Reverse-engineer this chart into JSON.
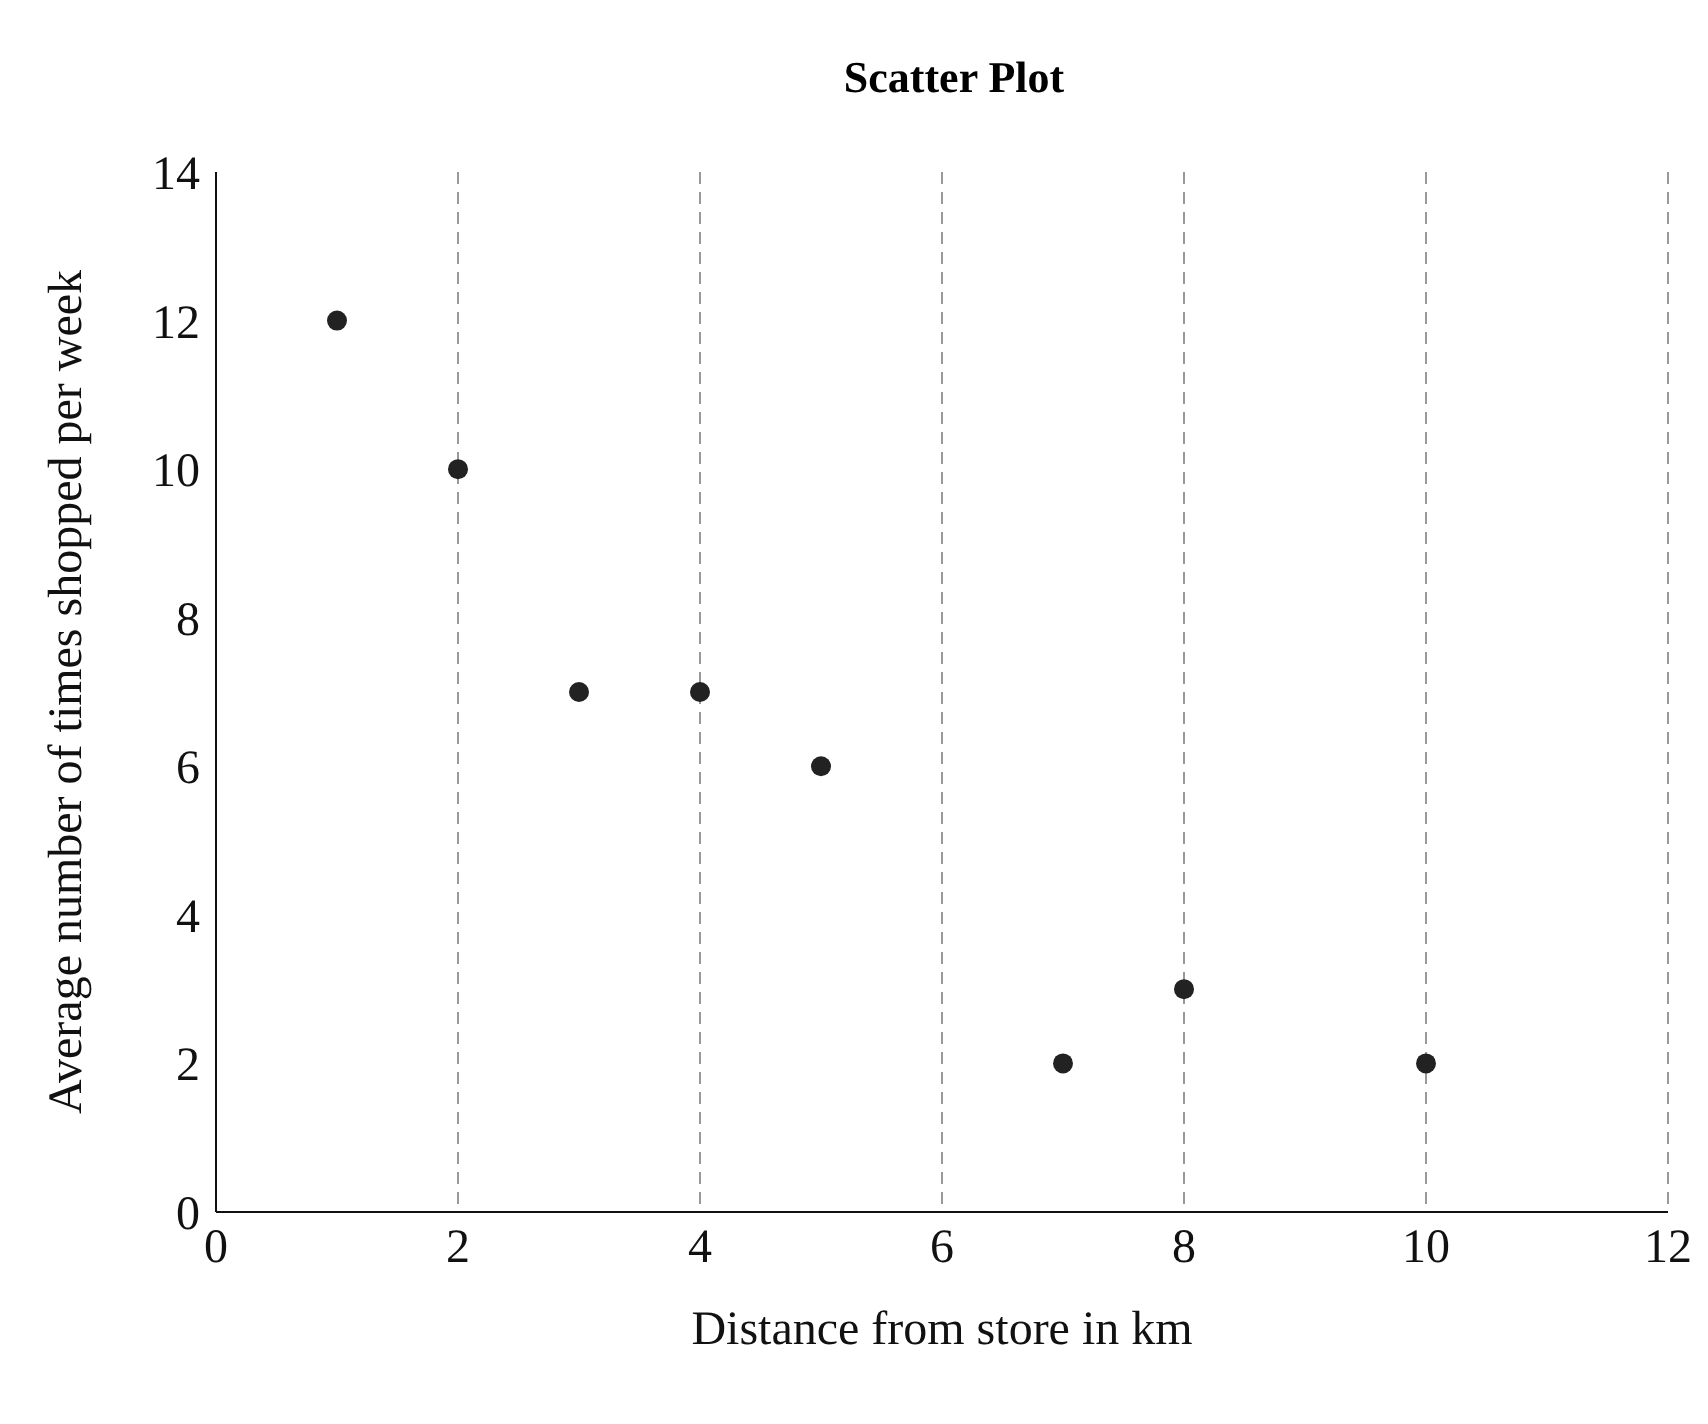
{
  "chart_data": {
    "type": "scatter",
    "title": "Scatter Plot",
    "xlabel": "Distance from store in km",
    "ylabel": "Average number of times shopped per week",
    "x": [
      1,
      2,
      3,
      4,
      5,
      7,
      8,
      10
    ],
    "series": [
      {
        "color": "#222222",
        "values": [
          12,
          10,
          7,
          7,
          6,
          2,
          3,
          2
        ]
      }
    ],
    "xlim": [
      0,
      12
    ],
    "xticks": [
      0,
      2,
      4,
      6,
      8,
      10,
      12
    ],
    "ylim": [
      0,
      14
    ],
    "yticks": [
      0,
      2,
      4,
      6,
      8,
      10,
      12,
      14
    ],
    "grid": "x",
    "marker": "circle",
    "legend": false
  }
}
